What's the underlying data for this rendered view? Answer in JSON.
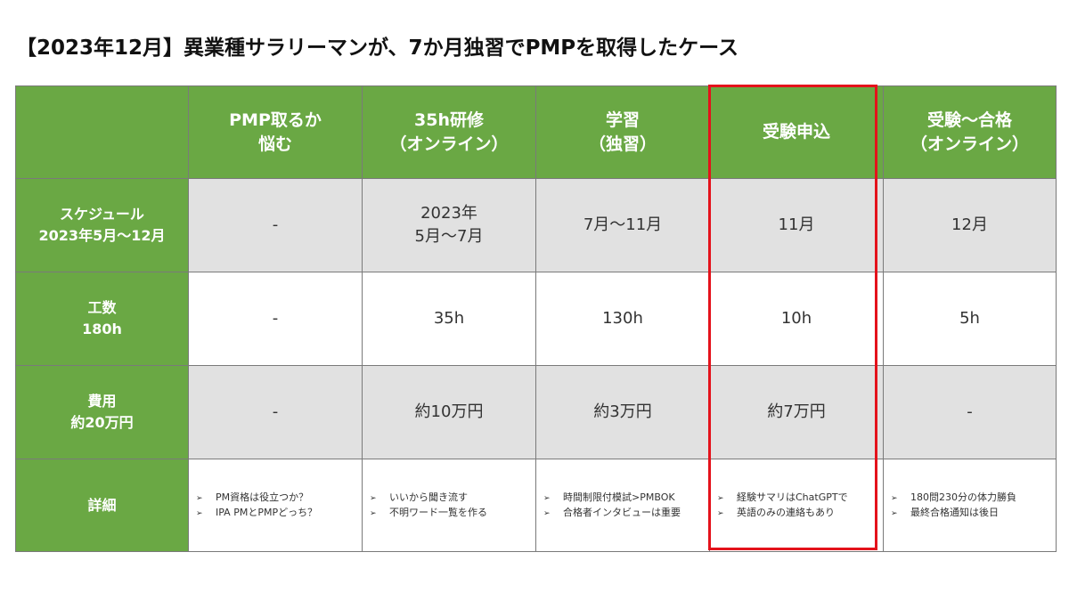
{
  "title": "【2023年12月】異業種サラリーマンが、7か月独習でPMPを取得したケース",
  "header": {
    "corner": "",
    "columns": [
      {
        "line1": "PMP取るか",
        "line2": "悩む"
      },
      {
        "line1": "35h研修",
        "line2": "（オンライン）"
      },
      {
        "line1": "学習",
        "line2": "（独習）"
      },
      {
        "line1": "受験申込",
        "line2": ""
      },
      {
        "line1": "受験～合格",
        "line2": "（オンライン）"
      }
    ]
  },
  "rows": {
    "schedule": {
      "label1": "スケジュール",
      "label2": "2023年5月～12月",
      "cells": [
        {
          "line1": "-",
          "line2": ""
        },
        {
          "line1": "2023年",
          "line2": "5月～7月"
        },
        {
          "line1": "7月～11月",
          "line2": ""
        },
        {
          "line1": "11月",
          "line2": ""
        },
        {
          "line1": "12月",
          "line2": ""
        }
      ]
    },
    "effort": {
      "label1": "工数",
      "label2": "180h",
      "cells": [
        "-",
        "35h",
        "130h",
        "10h",
        "5h"
      ]
    },
    "cost": {
      "label1": "費用",
      "label2": "約20万円",
      "cells": [
        "-",
        "約10万円",
        "約3万円",
        "約7万円",
        "-"
      ]
    },
    "details": {
      "label": "詳細",
      "bullet_marker": "➢",
      "cells": [
        [
          "PM資格は役立つか？",
          "IPA PMとPMPどっち？"
        ],
        [
          "いいから聞き流す",
          "不明ワード一覧を作る"
        ],
        [
          "時間制限付模試>PMBOK",
          "合格者インタビューは重要"
        ],
        [
          "経験サマリはChatGPTで",
          "英語のみの連絡もあり"
        ],
        [
          "180問230分の体力勝負",
          "最終合格通知は後日"
        ]
      ]
    }
  },
  "colors": {
    "header_green": "#6aa844",
    "row_gray": "#e1e1e1",
    "highlight_red": "#e4121b"
  }
}
